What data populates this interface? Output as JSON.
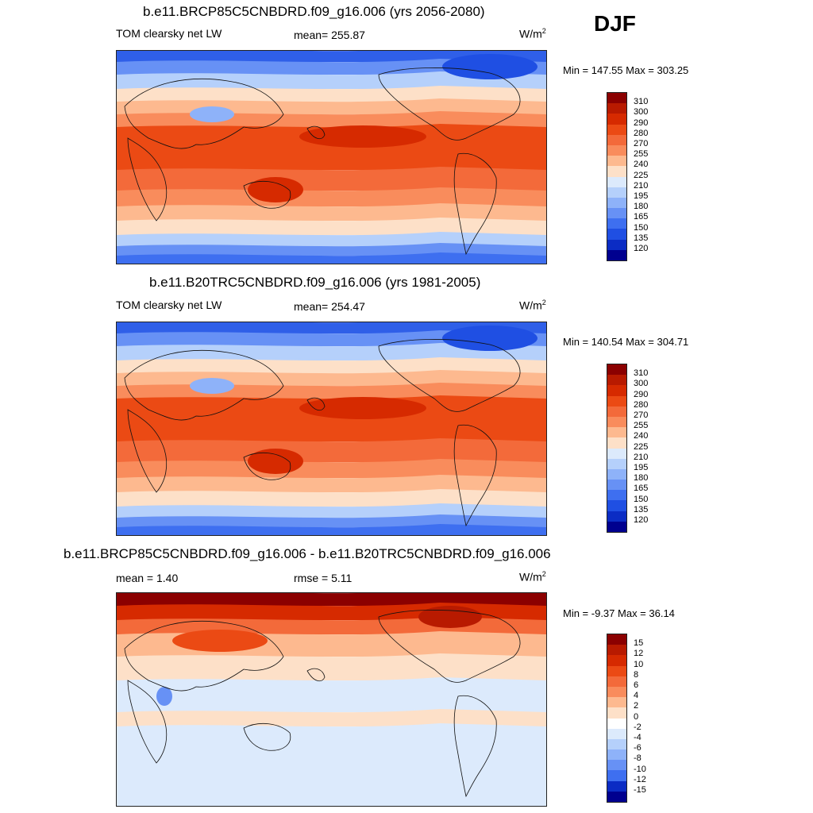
{
  "season": "DJF",
  "panels": [
    {
      "id": "future",
      "title": "b.e11.BRCP85C5CNBDRD.f09_g16.006 (yrs 2056-2080)",
      "left_label": "TOM clearsky net LW",
      "center_label": "mean= 255.87",
      "units_base": "W/m",
      "units_sup": "2",
      "minmax": "Min = 147.55 Max = 303.25",
      "colorbar": {
        "labels": [
          "310",
          "300",
          "290",
          "280",
          "270",
          "255",
          "240",
          "225",
          "210",
          "195",
          "180",
          "165",
          "150",
          "135",
          "120"
        ],
        "colors": [
          "#8b0000",
          "#b81a00",
          "#d62a00",
          "#eb4a14",
          "#f36a3a",
          "#f98c5c",
          "#fdb98f",
          "#fde0c8",
          "#dceafc",
          "#b5d0fb",
          "#8eb2f9",
          "#6791f5",
          "#3e6ff0",
          "#1f4fe3",
          "#0b2cc4",
          "#00008f"
        ]
      }
    },
    {
      "id": "historical",
      "title": "b.e11.B20TRC5CNBDRD.f09_g16.006 (yrs 1981-2005)",
      "left_label": "TOM clearsky net LW",
      "center_label": "mean= 254.47",
      "units_base": "W/m",
      "units_sup": "2",
      "minmax": "Min = 140.54 Max = 304.71",
      "colorbar": {
        "labels": [
          "310",
          "300",
          "290",
          "280",
          "270",
          "255",
          "240",
          "225",
          "210",
          "195",
          "180",
          "165",
          "150",
          "135",
          "120"
        ],
        "colors": [
          "#8b0000",
          "#b81a00",
          "#d62a00",
          "#eb4a14",
          "#f36a3a",
          "#f98c5c",
          "#fdb98f",
          "#fde0c8",
          "#dceafc",
          "#b5d0fb",
          "#8eb2f9",
          "#6791f5",
          "#3e6ff0",
          "#1f4fe3",
          "#0b2cc4",
          "#00008f"
        ]
      }
    },
    {
      "id": "difference",
      "title": "b.e11.BRCP85C5CNBDRD.f09_g16.006 - b.e11.B20TRC5CNBDRD.f09_g16.006",
      "left_label": "mean =   1.40",
      "center_label": "rmse =   5.11",
      "units_base": "W/m",
      "units_sup": "2",
      "minmax": "Min =  -9.37 Max =  36.14",
      "colorbar": {
        "labels": [
          "15",
          "12",
          "10",
          "8",
          "6",
          "4",
          "2",
          "0",
          "-2",
          "-4",
          "-6",
          "-8",
          "-10",
          "-12",
          "-15"
        ],
        "colors": [
          "#8b0000",
          "#b81a00",
          "#d62a00",
          "#eb4a14",
          "#f36a3a",
          "#f98c5c",
          "#fdb98f",
          "#fde0c8",
          "#ffffff",
          "#dceafc",
          "#b5d0fb",
          "#8eb2f9",
          "#6791f5",
          "#3e6ff0",
          "#0b2cc4",
          "#00008f"
        ]
      }
    }
  ],
  "chart_data": [
    {
      "type": "heatmap",
      "title": "b.e11.BRCP85C5CNBDRD.f09_g16.006 (yrs 2056-2080)",
      "variable": "TOM clearsky net LW",
      "units": "W/m2",
      "mean": 255.87,
      "min": 147.55,
      "max": 303.25,
      "levels": [
        120,
        135,
        150,
        165,
        180,
        195,
        210,
        225,
        240,
        255,
        270,
        280,
        290,
        300,
        310
      ],
      "season": "DJF"
    },
    {
      "type": "heatmap",
      "title": "b.e11.B20TRC5CNBDRD.f09_g16.006 (yrs 1981-2005)",
      "variable": "TOM clearsky net LW",
      "units": "W/m2",
      "mean": 254.47,
      "min": 140.54,
      "max": 304.71,
      "levels": [
        120,
        135,
        150,
        165,
        180,
        195,
        210,
        225,
        240,
        255,
        270,
        280,
        290,
        300,
        310
      ],
      "season": "DJF"
    },
    {
      "type": "heatmap",
      "title": "b.e11.BRCP85C5CNBDRD.f09_g16.006 - b.e11.B20TRC5CNBDRD.f09_g16.006",
      "units": "W/m2",
      "mean": 1.4,
      "rmse": 5.11,
      "min": -9.37,
      "max": 36.14,
      "levels": [
        -15,
        -12,
        -10,
        -8,
        -6,
        -4,
        -2,
        0,
        2,
        4,
        6,
        8,
        10,
        12,
        15
      ],
      "season": "DJF"
    }
  ]
}
